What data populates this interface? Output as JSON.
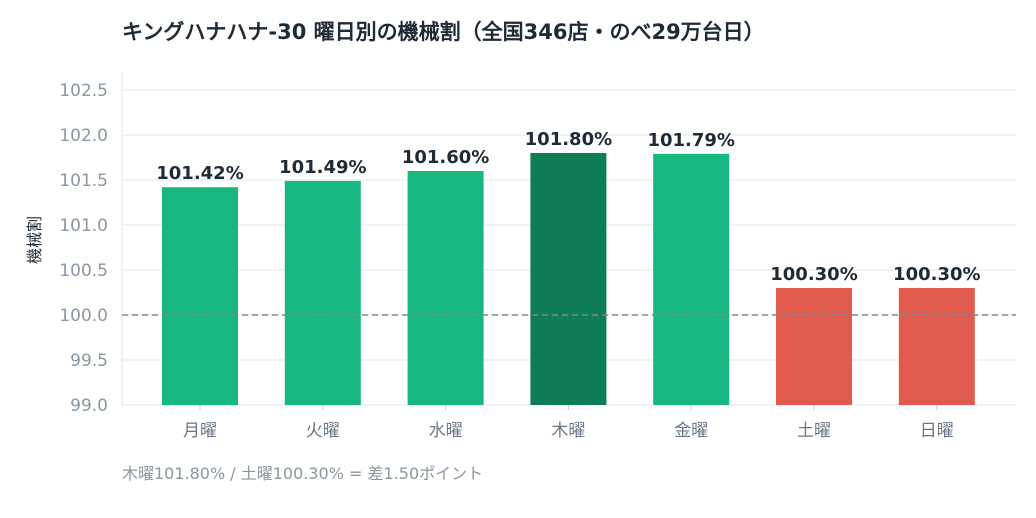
{
  "chart_data": {
    "type": "bar",
    "title": "キングハナハナ-30 曜日別の機械割（全国346店・のべ29万台日）",
    "xlabel": "",
    "ylabel": "機械割",
    "categories": [
      "月曜",
      "火曜",
      "水曜",
      "木曜",
      "金曜",
      "土曜",
      "日曜"
    ],
    "values": [
      101.42,
      101.49,
      101.6,
      101.8,
      101.79,
      100.3,
      100.3
    ],
    "value_labels": [
      "101.42%",
      "101.49%",
      "101.60%",
      "101.80%",
      "101.79%",
      "100.30%",
      "100.30%"
    ],
    "bar_colors": [
      "#17b880",
      "#17b880",
      "#17b880",
      "#0e7d56",
      "#17b880",
      "#e05a4e",
      "#e05a4e"
    ],
    "ylim": [
      99.0,
      102.7
    ],
    "yticks": [
      99.0,
      99.5,
      100.0,
      100.5,
      101.0,
      101.5,
      102.0,
      102.5
    ],
    "ytick_labels": [
      "99.0",
      "99.5",
      "100.0",
      "100.5",
      "101.0",
      "101.5",
      "102.0",
      "102.5"
    ],
    "reference_line": 100.0,
    "reference_line_color": "#7a8a9a",
    "grid": true,
    "legend": "none"
  },
  "footnote": "木曜101.80% / 土曜100.30% = 差1.50ポイント"
}
